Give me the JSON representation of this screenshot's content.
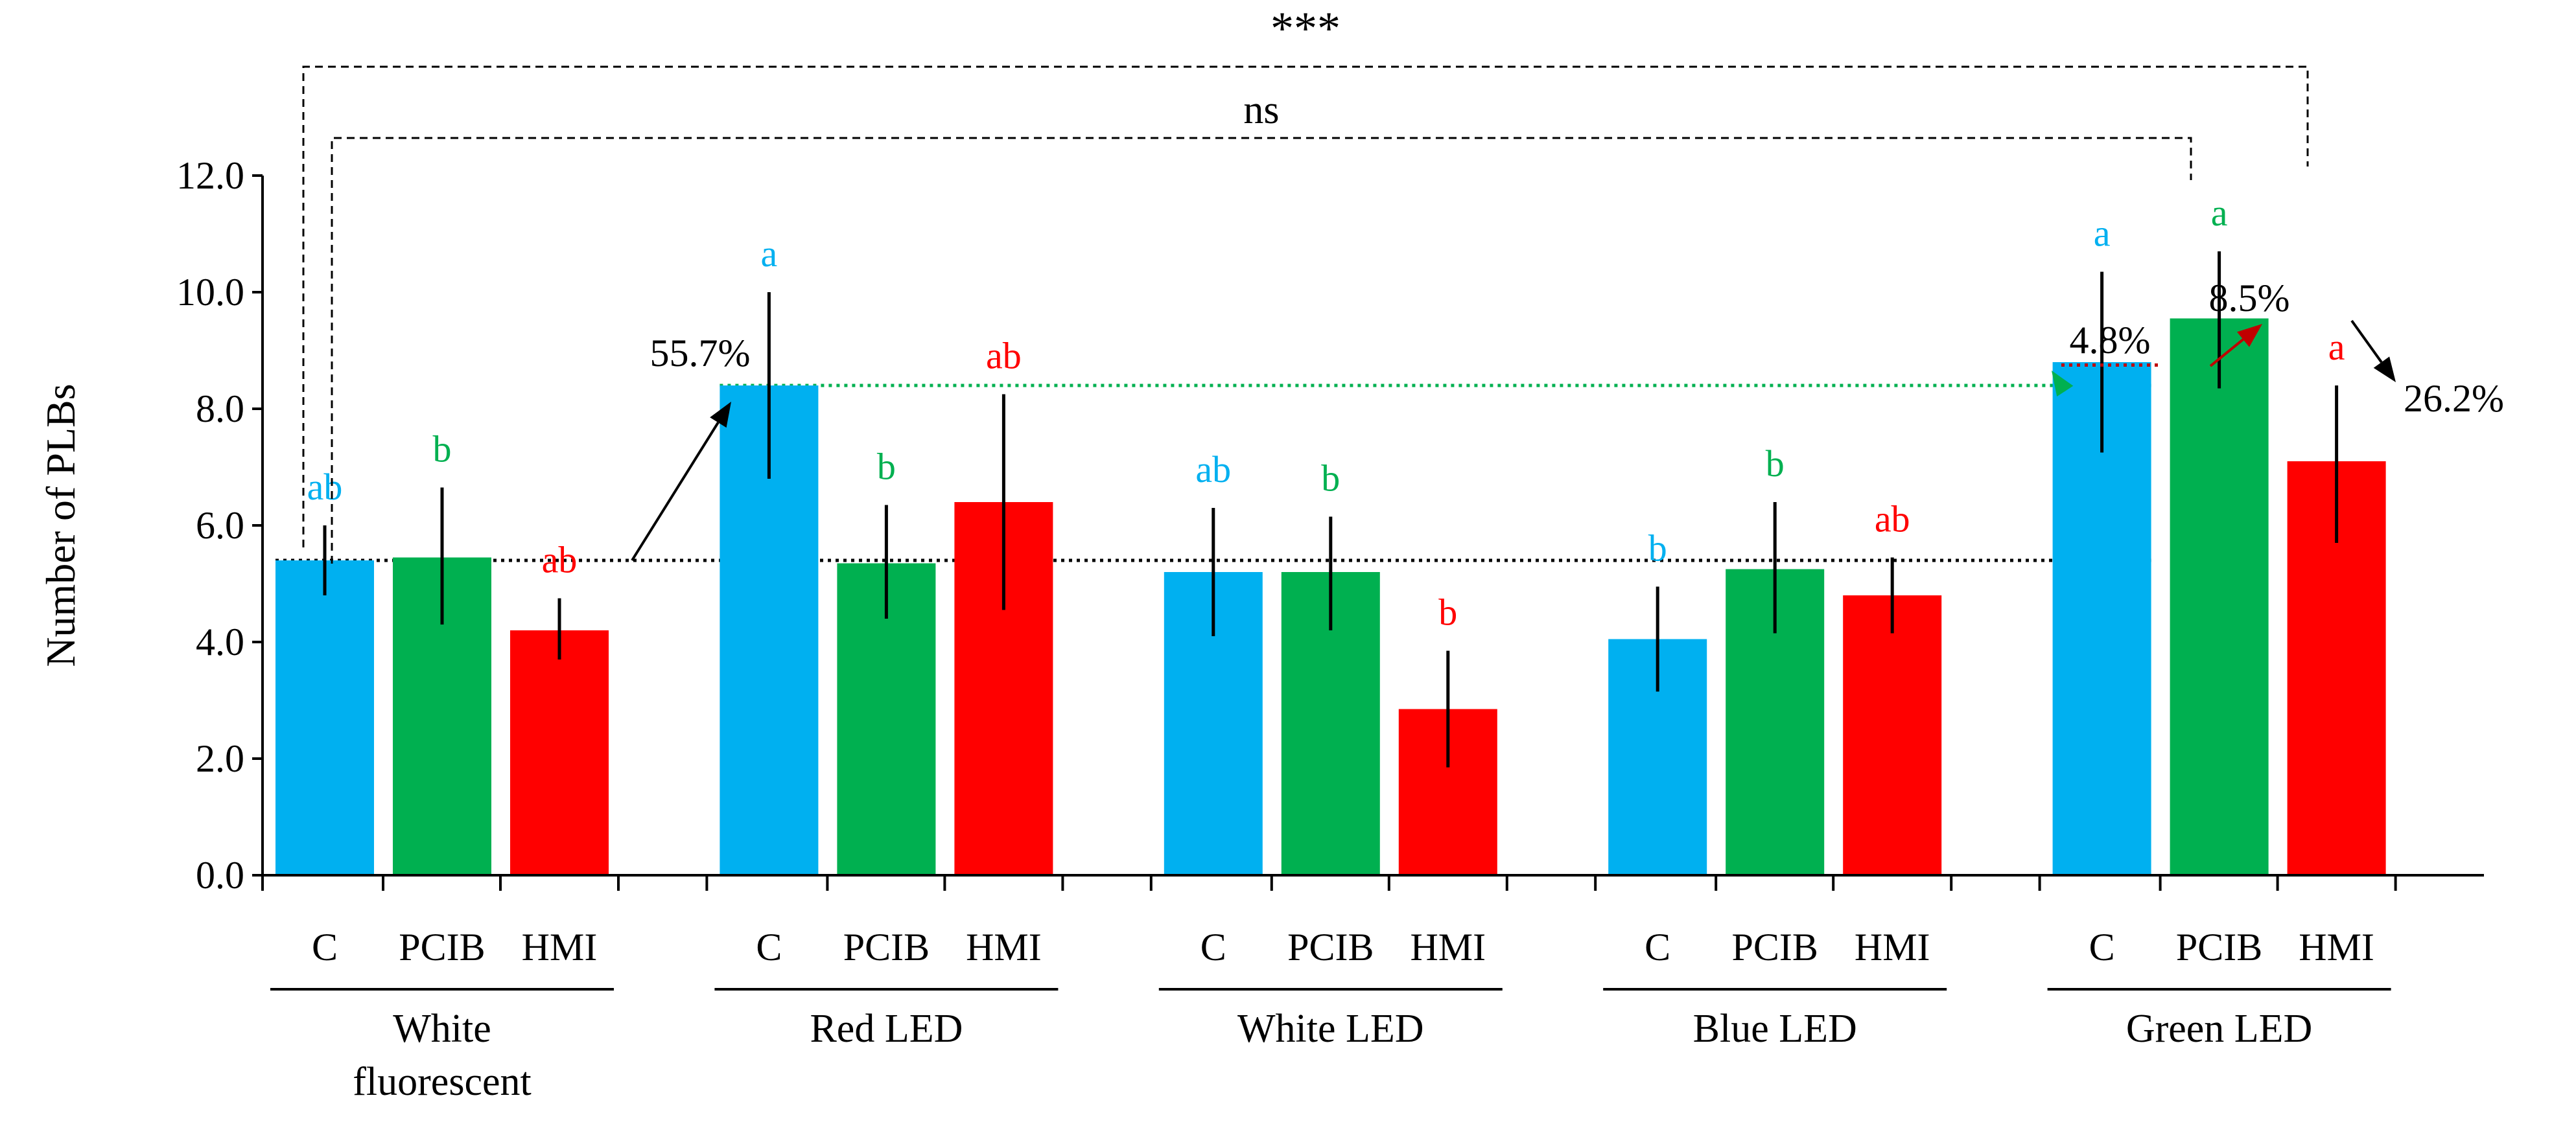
{
  "chart_data": {
    "type": "bar",
    "ylabel": "Number of PLBs",
    "ylim": [
      0,
      12
    ],
    "yticks": [
      "0.0",
      "2.0",
      "4.0",
      "6.0",
      "8.0",
      "10.0",
      "12.0"
    ],
    "treatments": [
      "C",
      "PCIB",
      "HMI"
    ],
    "colors": {
      "C": "#00b0f0",
      "PCIB": "#00b050",
      "HMI": "#ff0000"
    },
    "groups": [
      {
        "name_lines": [
          "White",
          "fluorescent"
        ],
        "bars": [
          {
            "treatment": "C",
            "value": 5.4,
            "err_low": 4.8,
            "err_high": 6.0,
            "letter": "ab"
          },
          {
            "treatment": "PCIB",
            "value": 5.45,
            "err_low": 4.3,
            "err_high": 6.65,
            "letter": "b"
          },
          {
            "treatment": "HMI",
            "value": 4.2,
            "err_low": 3.7,
            "err_high": 4.75,
            "letter": "ab"
          }
        ]
      },
      {
        "name_lines": [
          "Red LED"
        ],
        "bars": [
          {
            "treatment": "C",
            "value": 8.4,
            "err_low": 6.8,
            "err_high": 10.0,
            "letter": "a"
          },
          {
            "treatment": "PCIB",
            "value": 5.35,
            "err_low": 4.4,
            "err_high": 6.35,
            "letter": "b"
          },
          {
            "treatment": "HMI",
            "value": 6.4,
            "err_low": 4.55,
            "err_high": 8.25,
            "letter": "ab"
          }
        ]
      },
      {
        "name_lines": [
          "White LED"
        ],
        "bars": [
          {
            "treatment": "C",
            "value": 5.2,
            "err_low": 4.1,
            "err_high": 6.3,
            "letter": "ab"
          },
          {
            "treatment": "PCIB",
            "value": 5.2,
            "err_low": 4.2,
            "err_high": 6.15,
            "letter": "b"
          },
          {
            "treatment": "HMI",
            "value": 2.85,
            "err_low": 1.85,
            "err_high": 3.85,
            "letter": "b"
          }
        ]
      },
      {
        "name_lines": [
          "Blue LED"
        ],
        "bars": [
          {
            "treatment": "C",
            "value": 4.05,
            "err_low": 3.15,
            "err_high": 4.95,
            "letter": "b"
          },
          {
            "treatment": "PCIB",
            "value": 5.25,
            "err_low": 4.15,
            "err_high": 6.4,
            "letter": "b"
          },
          {
            "treatment": "HMI",
            "value": 4.8,
            "err_low": 4.15,
            "err_high": 5.45,
            "letter": "ab"
          }
        ]
      },
      {
        "name_lines": [
          "Green LED"
        ],
        "bars": [
          {
            "treatment": "C",
            "value": 8.8,
            "err_low": 7.25,
            "err_high": 10.35,
            "letter": "a"
          },
          {
            "treatment": "PCIB",
            "value": 9.55,
            "err_low": 8.35,
            "err_high": 10.7,
            "letter": "a"
          },
          {
            "treatment": "HMI",
            "value": 7.1,
            "err_low": 5.7,
            "err_high": 8.4,
            "letter": "a"
          }
        ]
      }
    ],
    "reference_lines": [
      {
        "name": "white-fluorescent-control-line",
        "value": 5.4,
        "color": "#000000",
        "from_group": 0,
        "to_group": 4
      },
      {
        "name": "red-led-control-line",
        "value": 8.4,
        "color": "#00b050",
        "from_group": 1,
        "to_group": 4
      }
    ],
    "annotations": [
      {
        "name": "red-led-increase-label",
        "text": "55.7%"
      },
      {
        "name": "green-led-c-increase-label",
        "text": "4.8%"
      },
      {
        "name": "green-led-pcib-increase-label",
        "text": "8.5%"
      },
      {
        "name": "green-led-hmi-decrease-label",
        "text": "26.2%"
      }
    ],
    "significance": [
      {
        "name": "ns-bracket",
        "label": "ns",
        "from": "White fluorescent C",
        "to": "Green LED C"
      },
      {
        "name": "triple-star-bracket",
        "label": "***",
        "from": "White fluorescent C",
        "to": "Green LED PCIB"
      }
    ]
  }
}
